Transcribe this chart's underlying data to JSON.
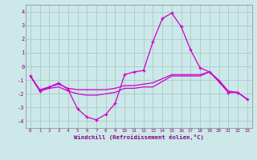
{
  "xlabel": "Windchill (Refroidissement éolien,°C)",
  "background_color": "#cce8e8",
  "grid_color": "#aacaca",
  "line_color": "#cc00cc",
  "xlim": [
    -0.5,
    23.5
  ],
  "ylim": [
    -4.5,
    4.5
  ],
  "yticks": [
    -4,
    -3,
    -2,
    -1,
    0,
    1,
    2,
    3,
    4
  ],
  "xticks": [
    0,
    1,
    2,
    3,
    4,
    5,
    6,
    7,
    8,
    9,
    10,
    11,
    12,
    13,
    14,
    15,
    16,
    17,
    18,
    19,
    20,
    21,
    22,
    23
  ],
  "series": [
    {
      "x": [
        0,
        1,
        2,
        3,
        4,
        5,
        6,
        7,
        8,
        9,
        10,
        11,
        12,
        13,
        14,
        15,
        16,
        17,
        18,
        19,
        20,
        21,
        22,
        23
      ],
      "y": [
        -0.7,
        -1.8,
        -1.5,
        -1.2,
        -1.7,
        -3.1,
        -3.7,
        -3.9,
        -3.5,
        -2.7,
        -0.6,
        -0.4,
        -0.3,
        1.8,
        3.5,
        3.9,
        2.9,
        1.2,
        -0.1,
        -0.4,
        -1.1,
        -1.9,
        -1.9,
        -2.4
      ],
      "marker": true
    },
    {
      "x": [
        0,
        1,
        2,
        3,
        4,
        5,
        6,
        7,
        8,
        9,
        10,
        11,
        12,
        13,
        14,
        15,
        16,
        17,
        18,
        19,
        20,
        21,
        22,
        23
      ],
      "y": [
        -0.7,
        -1.7,
        -1.5,
        -1.3,
        -1.6,
        -1.7,
        -1.7,
        -1.7,
        -1.7,
        -1.6,
        -1.4,
        -1.4,
        -1.3,
        -1.2,
        -0.9,
        -0.6,
        -0.6,
        -0.6,
        -0.6,
        -0.4,
        -1.0,
        -1.8,
        -1.9,
        -2.4
      ],
      "marker": false
    },
    {
      "x": [
        0,
        1,
        2,
        3,
        4,
        5,
        6,
        7,
        8,
        9,
        10,
        11,
        12,
        13,
        14,
        15,
        16,
        17,
        18,
        19,
        20,
        21,
        22,
        23
      ],
      "y": [
        -0.7,
        -1.8,
        -1.6,
        -1.5,
        -1.8,
        -2.0,
        -2.1,
        -2.1,
        -2.0,
        -1.9,
        -1.6,
        -1.6,
        -1.5,
        -1.5,
        -1.1,
        -0.7,
        -0.7,
        -0.7,
        -0.7,
        -0.4,
        -1.1,
        -1.9,
        -1.9,
        -2.4
      ],
      "marker": false
    }
  ]
}
